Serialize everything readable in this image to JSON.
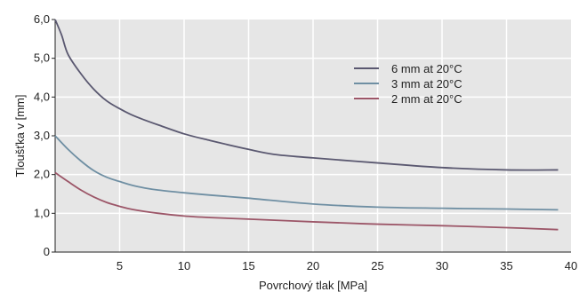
{
  "chart_data": {
    "type": "line",
    "title": "",
    "xlabel": "Povrchový tlak [MPa]",
    "ylabel": "Tloušťka v [mm]",
    "xlim": [
      0,
      40
    ],
    "ylim": [
      0,
      6
    ],
    "xticks": [
      {
        "value": 5,
        "label": "5"
      },
      {
        "value": 10,
        "label": "10"
      },
      {
        "value": 15,
        "label": "15"
      },
      {
        "value": 20,
        "label": "20"
      },
      {
        "value": 25,
        "label": "25"
      },
      {
        "value": 30,
        "label": "30"
      },
      {
        "value": 35,
        "label": "35"
      },
      {
        "value": 40,
        "label": "40"
      }
    ],
    "yticks": [
      {
        "value": 0,
        "label": "0"
      },
      {
        "value": 1,
        "label": "1,0"
      },
      {
        "value": 2,
        "label": "2,0"
      },
      {
        "value": 3,
        "label": "3,0"
      },
      {
        "value": 4,
        "label": "4,0"
      },
      {
        "value": 5,
        "label": "5,0"
      },
      {
        "value": 6,
        "label": "6,0"
      }
    ],
    "grid": true,
    "legend_position": "top-right",
    "background": "#e6e6e6",
    "gridline_color": "#ffffff",
    "series": [
      {
        "name": "6 mm at 20°C",
        "color": "#5a5870",
        "x": [
          0,
          0.5,
          1,
          2,
          3,
          4,
          5,
          6,
          7,
          8,
          10,
          12,
          15,
          17,
          20,
          25,
          30,
          35,
          39
        ],
        "y": [
          6.0,
          5.6,
          5.1,
          4.6,
          4.2,
          3.9,
          3.7,
          3.53,
          3.4,
          3.28,
          3.05,
          2.88,
          2.65,
          2.52,
          2.43,
          2.3,
          2.18,
          2.12,
          2.12
        ]
      },
      {
        "name": "3 mm at 20°C",
        "color": "#6f8fa3",
        "x": [
          0,
          1,
          2,
          3,
          4,
          5,
          6,
          7,
          8,
          10,
          12,
          15,
          20,
          25,
          30,
          35,
          39
        ],
        "y": [
          3.0,
          2.65,
          2.35,
          2.1,
          1.93,
          1.82,
          1.72,
          1.65,
          1.6,
          1.53,
          1.47,
          1.39,
          1.24,
          1.16,
          1.13,
          1.11,
          1.09
        ]
      },
      {
        "name": "2 mm at 20°C",
        "color": "#9c5668",
        "x": [
          0,
          1,
          2,
          3,
          4,
          5,
          6,
          8,
          10,
          12,
          15,
          20,
          25,
          30,
          35,
          39
        ],
        "y": [
          2.05,
          1.82,
          1.6,
          1.42,
          1.28,
          1.18,
          1.1,
          1.0,
          0.93,
          0.89,
          0.85,
          0.78,
          0.72,
          0.68,
          0.63,
          0.58
        ]
      }
    ]
  }
}
